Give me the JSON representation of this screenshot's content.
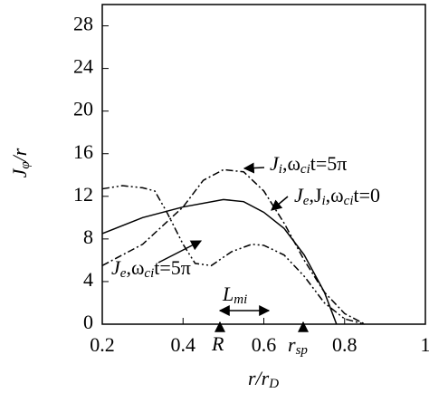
{
  "chart_data": {
    "type": "line",
    "xlabel": [
      "r",
      "/",
      "r",
      "D"
    ],
    "ylabel": [
      "J",
      "φ",
      "/",
      "r"
    ],
    "xlim": [
      0.2,
      1
    ],
    "xticks": [
      0.2,
      0.4,
      0.6,
      0.8,
      1
    ],
    "ylim": [
      0,
      30
    ],
    "yticks": [
      0,
      4,
      8,
      12,
      16,
      20,
      24,
      28
    ],
    "series": [
      {
        "color": "#000",
        "dash": "solid",
        "x": [
          0.2,
          0.3,
          0.4,
          0.5,
          0.55,
          0.6,
          0.65,
          0.7,
          0.75,
          0.78
        ],
        "values": [
          8.5,
          10,
          11,
          11.7,
          11.5,
          10.5,
          9,
          6.5,
          3,
          0
        ]
      },
      {
        "color": "#000",
        "dash": "dashdot",
        "x": [
          0.2,
          0.3,
          0.4,
          0.45,
          0.5,
          0.55,
          0.6,
          0.65,
          0.7,
          0.75,
          0.8,
          0.85
        ],
        "values": [
          5.5,
          7.5,
          11,
          13.5,
          14.5,
          14.3,
          12.5,
          9.5,
          6,
          3,
          1,
          0
        ]
      },
      {
        "color": "#000",
        "dash": "dashdotdot",
        "x": [
          0.2,
          0.25,
          0.3,
          0.33,
          0.36,
          0.4,
          0.43,
          0.47,
          0.52,
          0.57,
          0.6,
          0.65,
          0.7,
          0.75,
          0.8,
          0.85
        ],
        "values": [
          12.7,
          13,
          12.8,
          12.5,
          10.5,
          7.5,
          5.7,
          5.5,
          6.8,
          7.5,
          7.4,
          6.5,
          4.5,
          2,
          0.5,
          0
        ]
      }
    ],
    "annotations": [
      [
        "J",
        "i",
        ",ω",
        "ci",
        "t=5π"
      ],
      [
        "J",
        "e",
        ",J",
        "i",
        ",ω",
        "ci",
        "t=0"
      ],
      [
        "J",
        "e",
        ",ω",
        "ci",
        "t=5π"
      ],
      [
        "L",
        "mi"
      ],
      [
        "R"
      ],
      [
        "r",
        "sp"
      ]
    ]
  }
}
